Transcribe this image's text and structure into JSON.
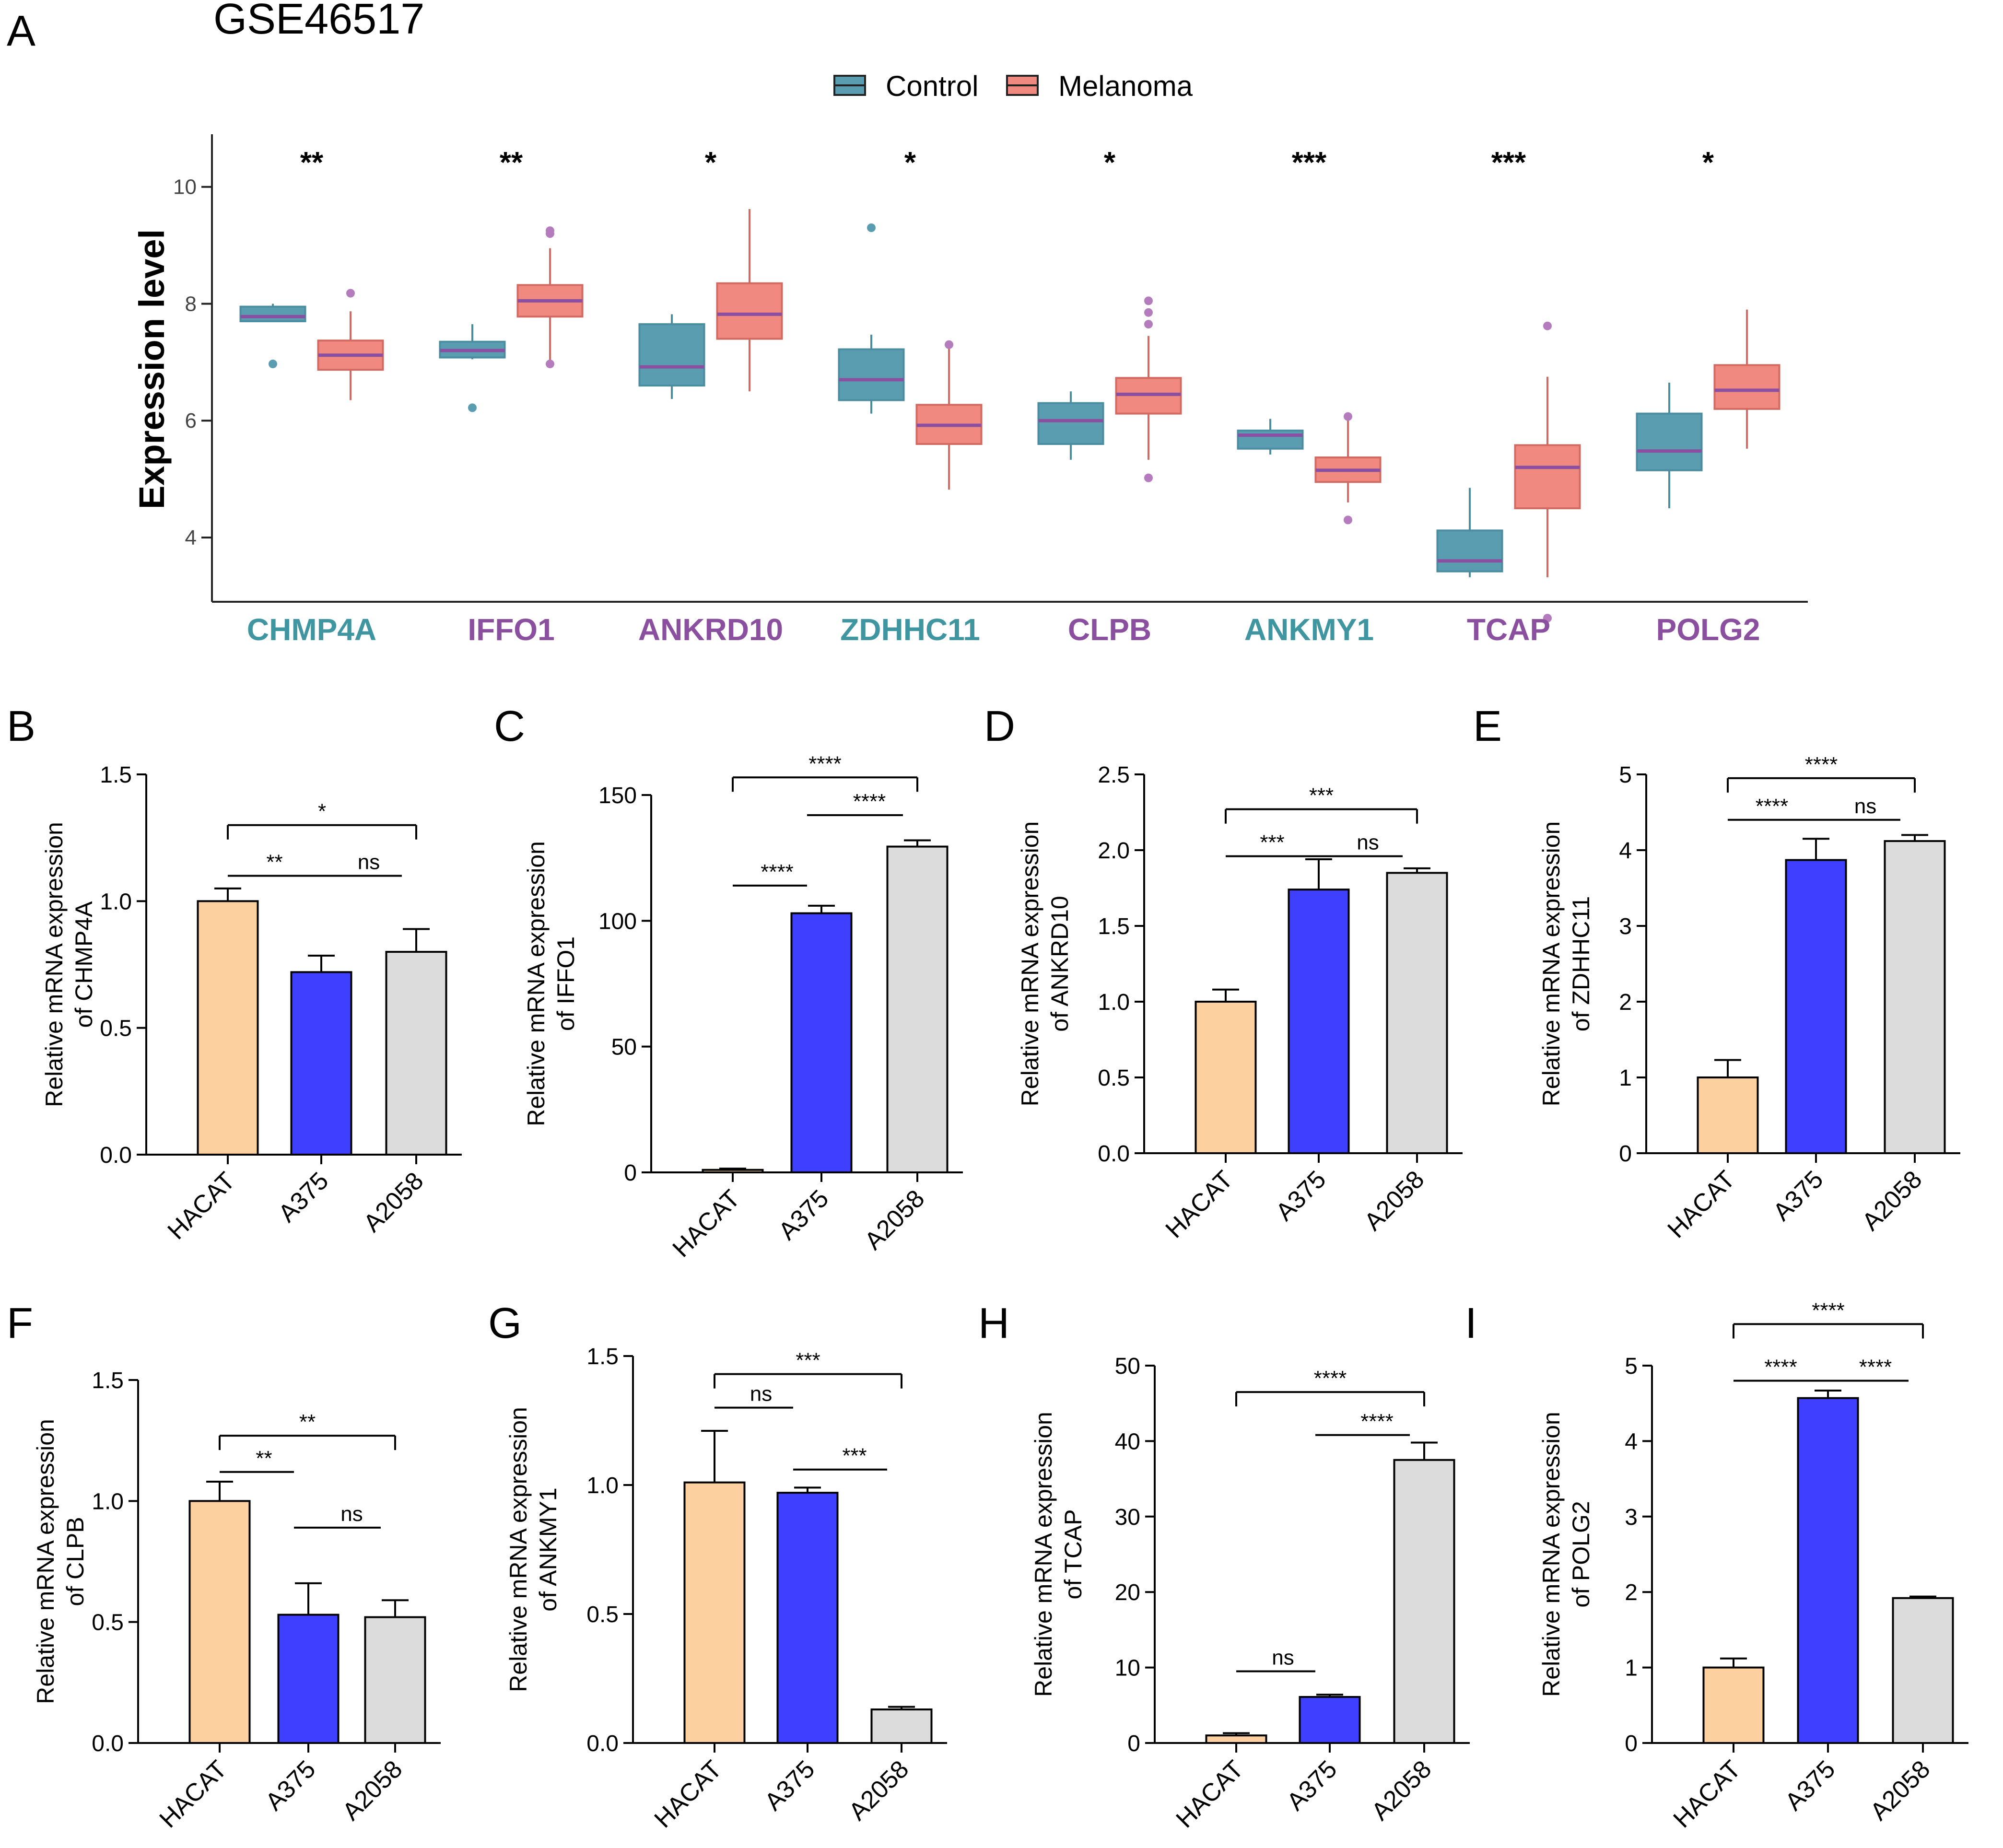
{
  "figure": {
    "panel_letters": [
      "A",
      "B",
      "C",
      "D",
      "E",
      "F",
      "G",
      "H",
      "I"
    ]
  },
  "chart_data": [
    {
      "type": "box",
      "panel": "A",
      "title": "GSE46517",
      "ylabel": "Expression level",
      "ylim": [
        2.9,
        10.9
      ],
      "yticks": [
        4,
        6,
        8,
        10
      ],
      "legend": {
        "position": "top-center",
        "entries": [
          "Control",
          "Melanoma"
        ]
      },
      "colors": {
        "control_fill": "#5b9db0",
        "control_edge": "#4a8da0",
        "melanoma_fill": "#f08a80",
        "melanoma_edge": "#d26a62",
        "median": "#8a4fa0",
        "label_teal": "#3f95a0",
        "label_purple": "#8b4f9f"
      },
      "genes": [
        {
          "name": "CHMP4A",
          "label_color": "teal",
          "sig": "**",
          "control": {
            "min": 7.7,
            "q1": 7.7,
            "median": 7.78,
            "q3": 7.95,
            "max": 8.0,
            "outliers": [
              6.97
            ]
          },
          "melanoma": {
            "min": 6.35,
            "q1": 6.87,
            "median": 7.12,
            "q3": 7.37,
            "max": 7.87,
            "outliers": [
              8.18
            ]
          }
        },
        {
          "name": "IFFO1",
          "label_color": "purple",
          "sig": "**",
          "control": {
            "min": 7.05,
            "q1": 7.08,
            "median": 7.2,
            "q3": 7.35,
            "max": 7.65,
            "outliers": [
              6.22
            ]
          },
          "melanoma": {
            "min": 7.0,
            "q1": 7.78,
            "median": 8.05,
            "q3": 8.32,
            "max": 8.95,
            "outliers": [
              6.97,
              9.2,
              9.25
            ]
          }
        },
        {
          "name": "ANKRD10",
          "label_color": "purple",
          "sig": "*",
          "control": {
            "min": 6.37,
            "q1": 6.6,
            "median": 6.92,
            "q3": 7.65,
            "max": 7.82,
            "outliers": []
          },
          "melanoma": {
            "min": 6.5,
            "q1": 7.4,
            "median": 7.82,
            "q3": 8.35,
            "max": 9.62,
            "outliers": []
          }
        },
        {
          "name": "ZDHHC11",
          "label_color": "teal",
          "sig": "*",
          "control": {
            "min": 6.12,
            "q1": 6.35,
            "median": 6.7,
            "q3": 7.22,
            "max": 7.47,
            "outliers": [
              9.3
            ]
          },
          "melanoma": {
            "min": 4.82,
            "q1": 5.6,
            "median": 5.92,
            "q3": 6.27,
            "max": 7.3,
            "outliers": [
              7.3
            ]
          }
        },
        {
          "name": "CLPB",
          "label_color": "purple",
          "sig": "*",
          "control": {
            "min": 5.33,
            "q1": 5.6,
            "median": 6.0,
            "q3": 6.3,
            "max": 6.5,
            "outliers": []
          },
          "melanoma": {
            "min": 5.33,
            "q1": 6.12,
            "median": 6.45,
            "q3": 6.73,
            "max": 7.45,
            "outliers": [
              5.02,
              7.65,
              7.85,
              8.05
            ]
          }
        },
        {
          "name": "ANKMY1",
          "label_color": "teal",
          "sig": "***",
          "control": {
            "min": 5.42,
            "q1": 5.52,
            "median": 5.75,
            "q3": 5.83,
            "max": 6.03,
            "outliers": []
          },
          "melanoma": {
            "min": 4.6,
            "q1": 4.95,
            "median": 5.15,
            "q3": 5.37,
            "max": 6.05,
            "outliers": [
              4.3,
              6.07
            ]
          }
        },
        {
          "name": "TCAP",
          "label_color": "purple",
          "sig": "***",
          "control": {
            "min": 3.32,
            "q1": 3.42,
            "median": 3.6,
            "q3": 4.12,
            "max": 4.85,
            "outliers": []
          },
          "melanoma": {
            "min": 3.32,
            "q1": 4.5,
            "median": 5.2,
            "q3": 5.58,
            "max": 6.75,
            "outliers": [
              2.62,
              7.62
            ]
          }
        },
        {
          "name": "POLG2",
          "label_color": "purple",
          "sig": "*",
          "control": {
            "min": 4.5,
            "q1": 5.15,
            "median": 5.48,
            "q3": 6.12,
            "max": 6.65,
            "outliers": []
          },
          "melanoma": {
            "min": 5.52,
            "q1": 6.2,
            "median": 6.52,
            "q3": 6.95,
            "max": 7.9,
            "outliers": []
          }
        }
      ]
    },
    {
      "type": "bar",
      "panel": "B",
      "ylabel": [
        "Relative mRNA expression",
        "of CHMP4A"
      ],
      "categories": [
        "HACAT",
        "A375",
        "A2058"
      ],
      "values": [
        1.0,
        0.72,
        0.8
      ],
      "errors": [
        0.05,
        0.065,
        0.09
      ],
      "ylim": [
        0,
        1.5
      ],
      "yticks": [
        0.0,
        0.5,
        1.0,
        1.5
      ],
      "tick_decimals": 1,
      "colors": [
        "#fdd09f",
        "#3f3fff",
        "#dcdcdc"
      ],
      "comparisons": [
        {
          "from": 0,
          "to": 1,
          "label": "**",
          "y": 1.1
        },
        {
          "from": 1,
          "to": 2,
          "label": "ns",
          "y": 1.1
        },
        {
          "from": 0,
          "to": 2,
          "label": "*",
          "y": 1.3
        }
      ]
    },
    {
      "type": "bar",
      "panel": "C",
      "ylabel": [
        "Relative mRNA expression",
        "of IFFO1"
      ],
      "categories": [
        "HACAT",
        "A375",
        "A2058"
      ],
      "values": [
        1,
        103,
        129.5
      ],
      "errors": [
        0.5,
        3,
        2.5
      ],
      "ylim": [
        0,
        150
      ],
      "yticks": [
        0,
        50,
        100,
        150
      ],
      "tick_decimals": 0,
      "colors": [
        "#fdd09f",
        "#3f3fff",
        "#dcdcdc"
      ],
      "comparisons": [
        {
          "from": 0,
          "to": 1,
          "label": "****",
          "y": 114
        },
        {
          "from": 1,
          "to": 2,
          "label": "****",
          "y": 142
        },
        {
          "from": 0,
          "to": 2,
          "label": "****",
          "y": 157
        }
      ]
    },
    {
      "type": "bar",
      "panel": "D",
      "ylabel": [
        "Relative mRNA expression",
        "of ANKRD10"
      ],
      "categories": [
        "HACAT",
        "A375",
        "A2058"
      ],
      "values": [
        1.0,
        1.74,
        1.85
      ],
      "errors": [
        0.08,
        0.2,
        0.03
      ],
      "ylim": [
        0,
        2.5
      ],
      "yticks": [
        0.0,
        0.5,
        1.0,
        1.5,
        2.0,
        2.5
      ],
      "tick_decimals": 1,
      "colors": [
        "#fdd09f",
        "#3f3fff",
        "#dcdcdc"
      ],
      "comparisons": [
        {
          "from": 0,
          "to": 1,
          "label": "***",
          "y": 1.96
        },
        {
          "from": 1,
          "to": 2,
          "label": "ns",
          "y": 1.96
        },
        {
          "from": 0,
          "to": 2,
          "label": "***",
          "y": 2.27
        }
      ]
    },
    {
      "type": "bar",
      "panel": "E",
      "ylabel": [
        "Relative mRNA expression",
        "of ZDHHC11"
      ],
      "categories": [
        "HACAT",
        "A375",
        "A2058"
      ],
      "values": [
        1.0,
        3.87,
        4.12
      ],
      "errors": [
        0.23,
        0.28,
        0.08
      ],
      "ylim": [
        0,
        5
      ],
      "yticks": [
        0,
        1,
        2,
        3,
        4,
        5
      ],
      "tick_decimals": 0,
      "colors": [
        "#fdd09f",
        "#3f3fff",
        "#dcdcdc"
      ],
      "comparisons": [
        {
          "from": 0,
          "to": 1,
          "label": "****",
          "y": 4.4
        },
        {
          "from": 1,
          "to": 2,
          "label": "ns",
          "y": 4.4
        },
        {
          "from": 0,
          "to": 2,
          "label": "****",
          "y": 4.95
        }
      ]
    },
    {
      "type": "bar",
      "panel": "F",
      "ylabel": [
        "Relative mRNA expression",
        "of CLPB"
      ],
      "categories": [
        "HACAT",
        "A375",
        "A2058"
      ],
      "values": [
        1.0,
        0.53,
        0.52
      ],
      "errors": [
        0.08,
        0.13,
        0.07
      ],
      "ylim": [
        0,
        1.5
      ],
      "yticks": [
        0.0,
        0.5,
        1.0,
        1.5
      ],
      "tick_decimals": 1,
      "colors": [
        "#fdd09f",
        "#3f3fff",
        "#dcdcdc"
      ],
      "comparisons": [
        {
          "from": 0,
          "to": 1,
          "label": "**",
          "y": 1.12
        },
        {
          "from": 1,
          "to": 2,
          "label": "ns",
          "y": 0.89
        },
        {
          "from": 0,
          "to": 2,
          "label": "**",
          "y": 1.27
        }
      ]
    },
    {
      "type": "bar",
      "panel": "G",
      "ylabel": [
        "Relative mRNA expression",
        "of ANKMY1"
      ],
      "categories": [
        "HACAT",
        "A375",
        "A2058"
      ],
      "values": [
        1.01,
        0.97,
        0.13
      ],
      "errors": [
        0.2,
        0.02,
        0.01
      ],
      "ylim": [
        0,
        1.5
      ],
      "yticks": [
        0.0,
        0.5,
        1.0,
        1.5
      ],
      "tick_decimals": 1,
      "colors": [
        "#fdd09f",
        "#3f3fff",
        "#dcdcdc"
      ],
      "comparisons": [
        {
          "from": 0,
          "to": 1,
          "label": "ns",
          "y": 1.3
        },
        {
          "from": 1,
          "to": 2,
          "label": "***",
          "y": 1.06
        },
        {
          "from": 0,
          "to": 2,
          "label": "***",
          "y": 1.43
        }
      ]
    },
    {
      "type": "bar",
      "panel": "H",
      "ylabel": [
        "Relative mRNA expression",
        "of TCAP"
      ],
      "categories": [
        "HACAT",
        "A375",
        "A2058"
      ],
      "values": [
        1.0,
        6.1,
        37.5
      ],
      "errors": [
        0.3,
        0.3,
        2.3
      ],
      "ylim": [
        0,
        50
      ],
      "yticks": [
        0,
        10,
        20,
        30,
        40,
        50
      ],
      "tick_decimals": 0,
      "colors": [
        "#fdd09f",
        "#3f3fff",
        "#dcdcdc"
      ],
      "comparisons": [
        {
          "from": 0,
          "to": 1,
          "label": "ns",
          "y": 9.5
        },
        {
          "from": 1,
          "to": 2,
          "label": "****",
          "y": 40.8
        },
        {
          "from": 0,
          "to": 2,
          "label": "****",
          "y": 46.5
        }
      ]
    },
    {
      "type": "bar",
      "panel": "I",
      "ylabel": [
        "Relative mRNA expression",
        "of POLG2"
      ],
      "categories": [
        "HACAT",
        "A375",
        "A2058"
      ],
      "values": [
        1.0,
        4.57,
        1.92
      ],
      "errors": [
        0.12,
        0.1,
        0.02
      ],
      "ylim": [
        0,
        5
      ],
      "yticks": [
        0,
        1,
        2,
        3,
        4,
        5
      ],
      "tick_decimals": 0,
      "colors": [
        "#fdd09f",
        "#3f3fff",
        "#dcdcdc"
      ],
      "comparisons": [
        {
          "from": 0,
          "to": 1,
          "label": "****",
          "y": 4.8
        },
        {
          "from": 1,
          "to": 2,
          "label": "****",
          "y": 4.8
        },
        {
          "from": 0,
          "to": 2,
          "label": "****",
          "y": 5.55
        }
      ]
    }
  ]
}
